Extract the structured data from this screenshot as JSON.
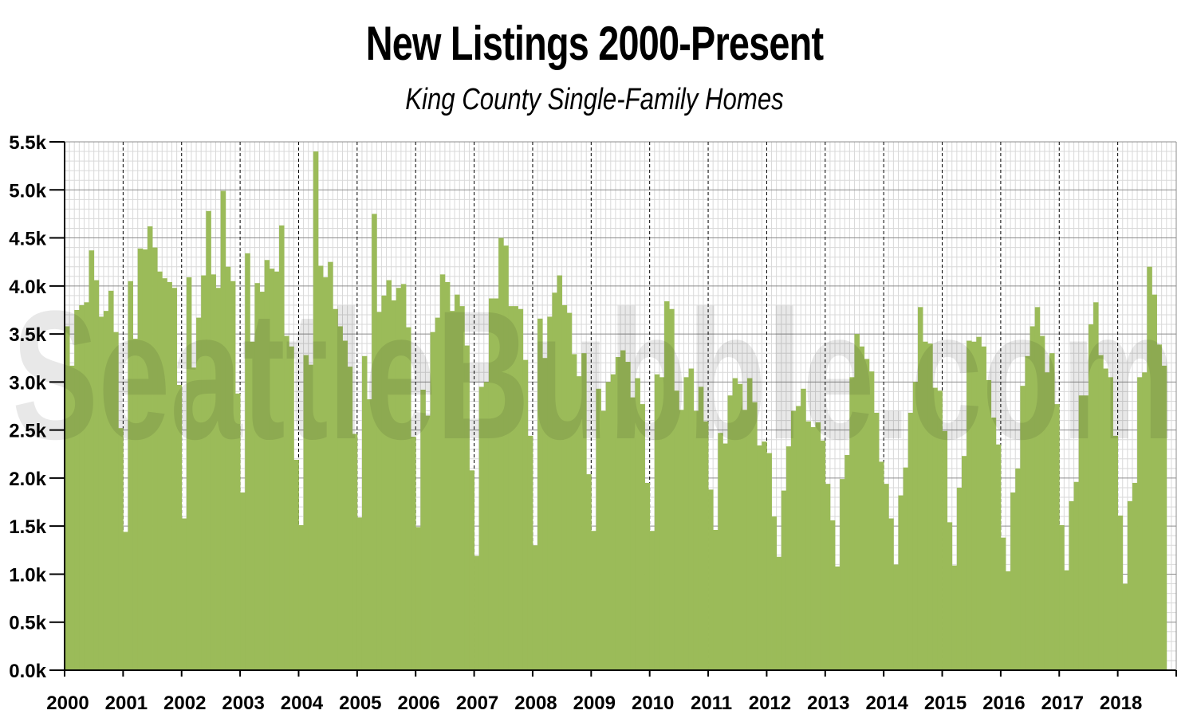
{
  "chart_data": {
    "type": "bar",
    "title": "New Listings 2000-Present",
    "subtitle": "King County Single-Family Homes",
    "watermark": "SeattleBubble.com",
    "xlabel": "",
    "ylabel": "",
    "ylim": [
      0,
      5500
    ],
    "y_ticks": [
      "0.0k",
      "0.5k",
      "1.0k",
      "1.5k",
      "2.0k",
      "2.5k",
      "3.0k",
      "3.5k",
      "4.0k",
      "4.5k",
      "5.0k",
      "5.5k"
    ],
    "x_ticks": [
      "2000",
      "2001",
      "2002",
      "2003",
      "2004",
      "2005",
      "2006",
      "2007",
      "2008",
      "2009",
      "2010",
      "2011",
      "2012",
      "2013",
      "2014",
      "2015",
      "2016",
      "2017",
      "2018"
    ],
    "x_start": "2000-01",
    "bar_color": "#9bbb59",
    "grid": true,
    "series": [
      {
        "name": "",
        "values": [
          3580,
          3170,
          3750,
          3800,
          3830,
          4370,
          4060,
          3680,
          3740,
          3950,
          3520,
          2520,
          1440,
          4050,
          3450,
          4390,
          4380,
          4620,
          4400,
          4150,
          4080,
          4040,
          3980,
          2970,
          1580,
          4090,
          3150,
          3670,
          4110,
          4780,
          4120,
          3980,
          4990,
          4200,
          4050,
          2880,
          1850,
          4340,
          3420,
          4030,
          3940,
          4270,
          4180,
          4150,
          4630,
          3480,
          3370,
          2190,
          1510,
          3280,
          3180,
          5400,
          4210,
          4090,
          4250,
          3760,
          3580,
          3430,
          3160,
          2460,
          1590,
          3270,
          2820,
          4750,
          3730,
          3900,
          4060,
          3850,
          3980,
          4020,
          3570,
          2430,
          1490,
          2920,
          2650,
          3520,
          3670,
          4120,
          4040,
          3740,
          3910,
          3790,
          3380,
          2080,
          1190,
          2950,
          3000,
          3870,
          3870,
          4500,
          4420,
          3790,
          3790,
          3760,
          3230,
          2440,
          1300,
          3660,
          3250,
          3680,
          3930,
          4110,
          3800,
          3720,
          3290,
          3060,
          3300,
          2040,
          1450,
          2930,
          2700,
          3000,
          3080,
          3260,
          3330,
          3210,
          2840,
          3040,
          2770,
          1950,
          1450,
          3080,
          3050,
          3840,
          3760,
          2910,
          2710,
          3050,
          3140,
          2700,
          2950,
          2590,
          1880,
          1460,
          2470,
          2360,
          2860,
          3040,
          2980,
          2710,
          3040,
          2790,
          2340,
          2380,
          2260,
          1600,
          1180,
          1870,
          2330,
          2700,
          2750,
          2930,
          2590,
          2530,
          2580,
          2390,
          1940,
          1560,
          1080,
          1990,
          2240,
          3050,
          3500,
          3370,
          3240,
          3110,
          2680,
          2170,
          1940,
          1580,
          1100,
          1820,
          2110,
          2680,
          3000,
          3780,
          3420,
          3400,
          2940,
          2910,
          2490,
          1540,
          1090,
          1900,
          2230,
          3430,
          3420,
          3470,
          3370,
          3020,
          2630,
          2350,
          1380,
          1030,
          1850,
          2100,
          2960,
          3270,
          3580,
          3780,
          3480,
          3100,
          3300,
          2770,
          1510,
          1040,
          1760,
          1960,
          2860,
          2860,
          3600,
          3830,
          3280,
          3140,
          3050,
          2440,
          1610,
          900,
          1760,
          1950,
          3050,
          3100,
          4200,
          3910,
          3390,
          3170
        ]
      }
    ]
  }
}
